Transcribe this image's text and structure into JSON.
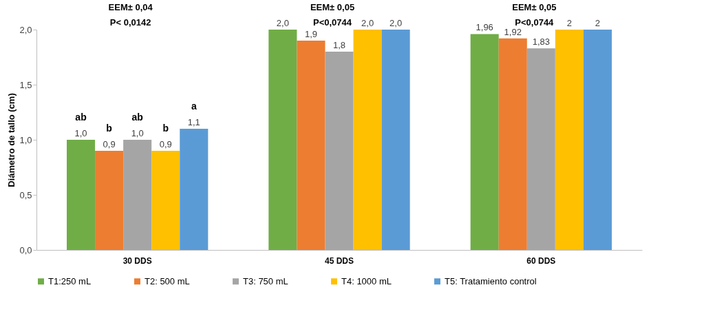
{
  "chart_data": {
    "type": "bar",
    "ylabel": "Diámetro de tallo (cm)",
    "categories": [
      "30 DDS",
      "45 DDS",
      "60 DDS"
    ],
    "ylim": [
      0,
      2
    ],
    "yticks": [
      {
        "value": 0,
        "label": "0,0"
      },
      {
        "value": 0.5,
        "label": "0,5"
      },
      {
        "value": 1,
        "label": "1,0"
      },
      {
        "value": 1.5,
        "label": "1,5"
      },
      {
        "value": 2,
        "label": "2,0"
      }
    ],
    "grid": false,
    "legend": "bottom",
    "series": [
      {
        "name": "T1:250 mL",
        "color": "#70ad47",
        "values": [
          1.0,
          2.0,
          1.96
        ],
        "value_labels": [
          "1,0",
          "2,0",
          "1,96"
        ]
      },
      {
        "name": "T2: 500 mL",
        "color": "#ed7d31",
        "values": [
          0.9,
          1.9,
          1.92
        ],
        "value_labels": [
          "0,9",
          "1,9",
          "1,92"
        ]
      },
      {
        "name": "T3: 750 mL",
        "color": "#a5a5a5",
        "values": [
          1.0,
          1.8,
          1.83
        ],
        "value_labels": [
          "1,0",
          "1,8",
          "1,83"
        ]
      },
      {
        "name": "T4: 1000 mL",
        "color": "#ffc000",
        "values": [
          0.9,
          2.0,
          2
        ],
        "value_labels": [
          "0,9",
          "2,0",
          "2"
        ]
      },
      {
        "name": "T5: Tratamiento control",
        "color": "#5b9bd5",
        "values": [
          1.1,
          2.0,
          2
        ],
        "value_labels": [
          "1,1",
          "2,0",
          "2"
        ]
      }
    ],
    "annotations": [
      "EEM± 0,04\nP< 0,0142",
      "EEM± 0,05\nP<0,0744",
      "EEM± 0,05\nP<0,0744",
      "ab",
      "b",
      "ab",
      "b",
      "a"
    ]
  }
}
